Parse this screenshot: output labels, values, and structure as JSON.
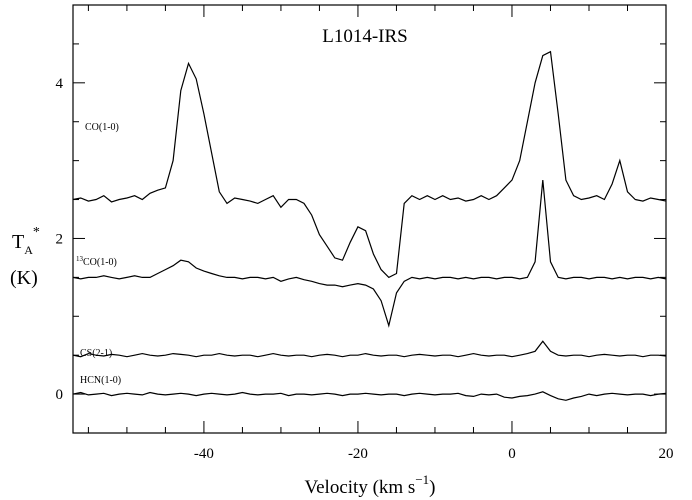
{
  "chart_data": {
    "type": "line",
    "title": "L1014-IRS",
    "x_label": {
      "text": "Velocity  (km s",
      "sup": "−1",
      "end": ")"
    },
    "y_label": {
      "main": "T",
      "sub": "A",
      "sup": "*",
      "unit": "(K)"
    },
    "xlim": [
      -57,
      20
    ],
    "ylim": [
      -0.5,
      5
    ],
    "xticks": [
      -40,
      -20,
      0,
      20
    ],
    "yticks": [
      0,
      2,
      4
    ],
    "xminorticks": [
      -55,
      -50,
      -45,
      -35,
      -30,
      -25,
      -15,
      -10,
      -5,
      5,
      10,
      15
    ],
    "yminorticks": [
      -0.5,
      0.5,
      1,
      1.5,
      2.5,
      3,
      3.5,
      4.5
    ],
    "x": [
      -57,
      -56,
      -55,
      -54,
      -53,
      -52,
      -51,
      -50,
      -49,
      -48,
      -47,
      -46,
      -45,
      -44,
      -43,
      -42,
      -41,
      -40,
      -39,
      -38,
      -37,
      -36,
      -35,
      -34,
      -33,
      -32,
      -31,
      -30,
      -29,
      -28,
      -27,
      -26,
      -25,
      -24,
      -23,
      -22,
      -21,
      -20,
      -19,
      -18,
      -17,
      -16,
      -15,
      -14,
      -13,
      -12,
      -11,
      -10,
      -9,
      -8,
      -7,
      -6,
      -5,
      -4,
      -3,
      -2,
      -1,
      0,
      1,
      2,
      3,
      4,
      5,
      6,
      7,
      8,
      9,
      10,
      11,
      12,
      13,
      14,
      15,
      16,
      17,
      18,
      19,
      20
    ],
    "series": [
      {
        "name": "CO(1-0)",
        "color": "#000000",
        "values": [
          2.5,
          2.52,
          2.48,
          2.5,
          2.55,
          2.47,
          2.5,
          2.52,
          2.55,
          2.5,
          2.58,
          2.62,
          2.65,
          3.0,
          3.9,
          4.25,
          4.05,
          3.6,
          3.1,
          2.6,
          2.45,
          2.52,
          2.5,
          2.48,
          2.45,
          2.5,
          2.55,
          2.4,
          2.5,
          2.5,
          2.45,
          2.3,
          2.05,
          1.9,
          1.75,
          1.72,
          1.95,
          2.15,
          2.1,
          1.8,
          1.6,
          1.5,
          1.55,
          2.45,
          2.55,
          2.5,
          2.55,
          2.5,
          2.55,
          2.5,
          2.52,
          2.48,
          2.5,
          2.55,
          2.5,
          2.55,
          2.65,
          2.75,
          3.0,
          3.5,
          4.0,
          4.35,
          4.4,
          3.6,
          2.75,
          2.55,
          2.5,
          2.52,
          2.55,
          2.5,
          2.7,
          3.0,
          2.6,
          2.5,
          2.48,
          2.52,
          2.5,
          2.48
        ]
      },
      {
        "name": "CO(1-0)",
        "name_sup": "13",
        "color": "#000000",
        "values": [
          1.5,
          1.48,
          1.5,
          1.5,
          1.52,
          1.5,
          1.48,
          1.5,
          1.52,
          1.5,
          1.5,
          1.55,
          1.6,
          1.65,
          1.72,
          1.7,
          1.62,
          1.58,
          1.55,
          1.52,
          1.5,
          1.5,
          1.48,
          1.5,
          1.5,
          1.48,
          1.5,
          1.45,
          1.48,
          1.5,
          1.47,
          1.45,
          1.42,
          1.4,
          1.4,
          1.38,
          1.4,
          1.42,
          1.4,
          1.35,
          1.2,
          0.88,
          1.3,
          1.45,
          1.5,
          1.48,
          1.5,
          1.48,
          1.5,
          1.5,
          1.48,
          1.5,
          1.48,
          1.5,
          1.5,
          1.48,
          1.5,
          1.5,
          1.48,
          1.5,
          1.7,
          2.75,
          1.7,
          1.5,
          1.48,
          1.5,
          1.5,
          1.48,
          1.5,
          1.5,
          1.48,
          1.5,
          1.48,
          1.5,
          1.5,
          1.48,
          1.5,
          1.48
        ]
      },
      {
        "name": "CS(2-1)",
        "color": "#000000",
        "values": [
          0.5,
          0.48,
          0.52,
          0.5,
          0.49,
          0.51,
          0.5,
          0.48,
          0.5,
          0.52,
          0.5,
          0.49,
          0.5,
          0.52,
          0.51,
          0.5,
          0.48,
          0.5,
          0.5,
          0.52,
          0.5,
          0.49,
          0.5,
          0.5,
          0.48,
          0.5,
          0.52,
          0.5,
          0.49,
          0.5,
          0.5,
          0.48,
          0.5,
          0.51,
          0.5,
          0.48,
          0.5,
          0.5,
          0.52,
          0.5,
          0.49,
          0.5,
          0.5,
          0.48,
          0.5,
          0.51,
          0.5,
          0.49,
          0.5,
          0.5,
          0.48,
          0.5,
          0.52,
          0.5,
          0.49,
          0.5,
          0.5,
          0.48,
          0.5,
          0.52,
          0.55,
          0.68,
          0.55,
          0.5,
          0.49,
          0.5,
          0.5,
          0.48,
          0.5,
          0.51,
          0.5,
          0.49,
          0.5,
          0.5,
          0.48,
          0.5,
          0.5,
          0.49
        ]
      },
      {
        "name": "HCN(1-0)",
        "color": "#000000",
        "values": [
          0.0,
          0.02,
          -0.01,
          0.0,
          0.01,
          -0.02,
          0.0,
          0.01,
          0.0,
          -0.01,
          0.02,
          0.0,
          -0.01,
          0.0,
          0.01,
          0.0,
          -0.02,
          0.0,
          0.01,
          0.0,
          -0.01,
          0.0,
          0.02,
          0.0,
          -0.01,
          0.0,
          0.0,
          0.01,
          -0.02,
          0.0,
          0.0,
          -0.01,
          0.0,
          0.01,
          0.0,
          -0.02,
          0.0,
          0.0,
          0.01,
          0.0,
          -0.01,
          0.0,
          0.0,
          -0.02,
          0.0,
          0.01,
          0.0,
          -0.01,
          0.0,
          0.0,
          0.01,
          -0.02,
          -0.03,
          0.0,
          -0.01,
          0.0,
          -0.04,
          -0.05,
          -0.03,
          -0.02,
          0.0,
          0.03,
          -0.02,
          -0.06,
          -0.08,
          -0.05,
          -0.03,
          0.0,
          -0.02,
          0.0,
          0.01,
          0.0,
          -0.01,
          0.0,
          0.0,
          -0.02,
          0.0,
          0.01
        ]
      }
    ]
  }
}
